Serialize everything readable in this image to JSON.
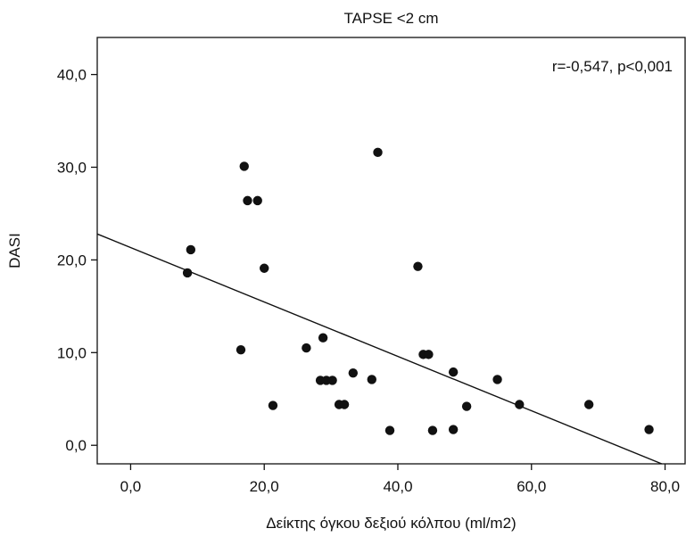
{
  "chart_data": {
    "type": "scatter",
    "title": "TAPSE <2 cm",
    "xlabel": "Δείκτης όγκου δεξιού κόλπου (ml/m2)",
    "ylabel": "DASI",
    "annotation": "r=-0,547, p<0,001",
    "xlim": [
      -5,
      83
    ],
    "ylim": [
      -2,
      44
    ],
    "x_ticks": [
      0,
      20,
      40,
      60,
      80
    ],
    "x_tick_labels": [
      "0,0",
      "20,0",
      "40,0",
      "60,0",
      "80,0"
    ],
    "y_ticks": [
      0,
      10,
      20,
      30,
      40
    ],
    "y_tick_labels": [
      "0,0",
      "10,0",
      "20,0",
      "30,0",
      "40,0"
    ],
    "grid": false,
    "fit_line": {
      "x": [
        -5,
        79.5
      ],
      "y": [
        22.8,
        -2.0
      ]
    },
    "points": [
      {
        "x": 8.5,
        "y": 18.6
      },
      {
        "x": 9.0,
        "y": 21.1
      },
      {
        "x": 16.5,
        "y": 10.3
      },
      {
        "x": 17.0,
        "y": 30.1
      },
      {
        "x": 17.5,
        "y": 26.4
      },
      {
        "x": 19.0,
        "y": 26.4
      },
      {
        "x": 20.0,
        "y": 19.1
      },
      {
        "x": 21.3,
        "y": 4.3
      },
      {
        "x": 26.3,
        "y": 10.5
      },
      {
        "x": 28.4,
        "y": 7.0
      },
      {
        "x": 28.8,
        "y": 11.6
      },
      {
        "x": 29.3,
        "y": 7.0
      },
      {
        "x": 30.2,
        "y": 7.0
      },
      {
        "x": 31.2,
        "y": 4.4
      },
      {
        "x": 32.0,
        "y": 4.4
      },
      {
        "x": 33.3,
        "y": 7.8
      },
      {
        "x": 36.1,
        "y": 7.1
      },
      {
        "x": 37.0,
        "y": 31.6
      },
      {
        "x": 38.8,
        "y": 1.6
      },
      {
        "x": 43.0,
        "y": 19.3
      },
      {
        "x": 43.8,
        "y": 9.8
      },
      {
        "x": 44.6,
        "y": 9.8
      },
      {
        "x": 45.2,
        "y": 1.6
      },
      {
        "x": 48.3,
        "y": 7.9
      },
      {
        "x": 48.3,
        "y": 1.7
      },
      {
        "x": 50.3,
        "y": 4.2
      },
      {
        "x": 54.9,
        "y": 7.1
      },
      {
        "x": 58.2,
        "y": 4.4
      },
      {
        "x": 68.6,
        "y": 4.4
      },
      {
        "x": 77.6,
        "y": 1.7
      }
    ]
  }
}
